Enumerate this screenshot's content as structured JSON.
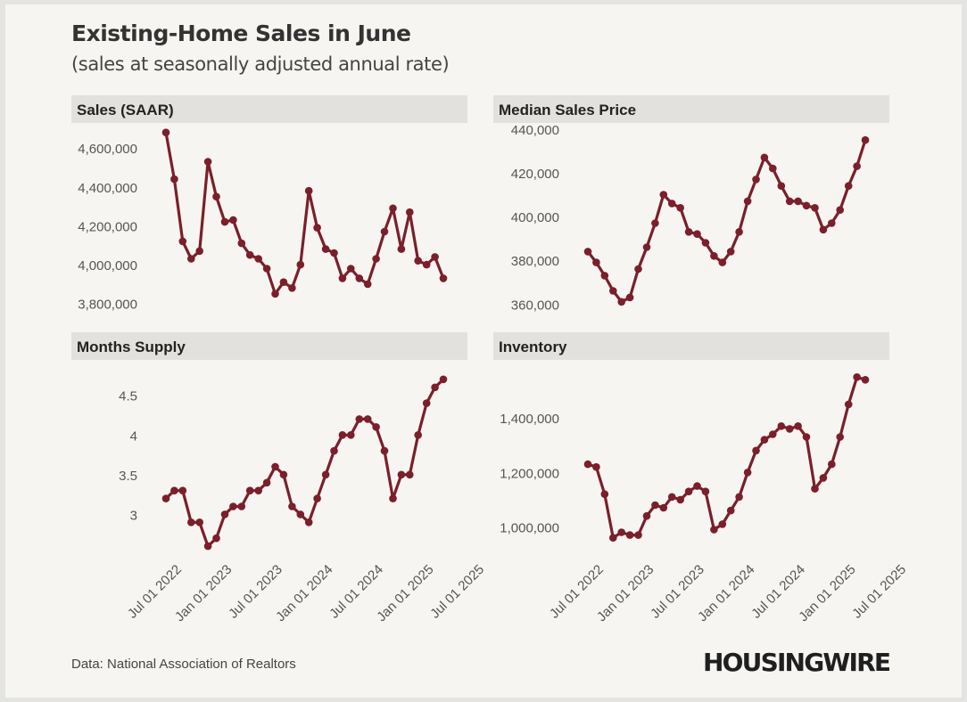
{
  "header": {
    "title": "Existing-Home Sales in June",
    "subtitle": "(sales at seasonally adjusted annual rate)"
  },
  "footer": {
    "source": "Data: National Association of Realtors",
    "logo": "HOUSINGWIRE"
  },
  "colors": {
    "line": "#7a1f2b",
    "panel_header": "#e3e1dd",
    "background": "#f7f5f1"
  },
  "x_tick_labels": [
    "Jul 01 2022",
    "Jan 01 2023",
    "Jul 01 2023",
    "Jan 01 2024",
    "Jul 01 2024",
    "Jan 01 2025",
    "Jul 01 2025"
  ],
  "chart_data": [
    {
      "type": "line",
      "title": "Sales (SAAR)",
      "x_start": "2022-06",
      "x_end": "2025-06",
      "y_ticks": [
        "3,800,000",
        "4,000,000",
        "4,200,000",
        "4,400,000",
        "4,600,000"
      ],
      "y_tick_values": [
        3800000,
        4000000,
        4200000,
        4400000,
        4600000
      ],
      "ylim": [
        3730000,
        4720000
      ],
      "values": [
        4680000,
        4440000,
        4120000,
        4030000,
        4070000,
        4530000,
        4350000,
        4220000,
        4230000,
        4110000,
        4050000,
        4030000,
        3980000,
        3850000,
        3910000,
        3880000,
        4000000,
        4380000,
        4190000,
        4080000,
        4060000,
        3930000,
        3980000,
        3930000,
        3900000,
        4030000,
        4170000,
        4290000,
        4080000,
        4270000,
        4020000,
        4000000,
        4040000,
        3930000
      ]
    },
    {
      "type": "line",
      "title": "Median Sales Price",
      "x_start": "2022-06",
      "x_end": "2025-06",
      "y_ticks": [
        "360,000",
        "380,000",
        "400,000",
        "420,000",
        "440,000"
      ],
      "y_tick_values": [
        360000,
        380000,
        400000,
        420000,
        440000
      ],
      "ylim": [
        354000,
        442000
      ],
      "values": [
        384000,
        379000,
        373000,
        366000,
        361000,
        363000,
        376000,
        386000,
        397000,
        410000,
        406000,
        404000,
        393000,
        392000,
        388000,
        382000,
        379000,
        384000,
        393000,
        407000,
        417000,
        427000,
        422000,
        414000,
        407000,
        407000,
        405000,
        404000,
        394000,
        397000,
        403000,
        414000,
        423000,
        435000
      ]
    },
    {
      "type": "line",
      "title": "Months Supply",
      "x_start": "2022-06",
      "x_end": "2025-06",
      "y_ticks": [
        "3",
        "3.5",
        "4",
        "4.5"
      ],
      "y_tick_values": [
        3,
        3.5,
        4,
        4.5
      ],
      "ylim": [
        2.5,
        4.9
      ],
      "values": [
        3.2,
        3.3,
        3.3,
        2.9,
        2.9,
        2.6,
        2.7,
        3.0,
        3.1,
        3.1,
        3.3,
        3.3,
        3.4,
        3.6,
        3.5,
        3.1,
        3.0,
        2.9,
        3.2,
        3.5,
        3.8,
        4.0,
        4.0,
        4.2,
        4.2,
        4.1,
        3.8,
        3.2,
        3.5,
        3.5,
        4.0,
        4.4,
        4.6,
        4.7
      ]
    },
    {
      "type": "line",
      "title": "Inventory",
      "x_start": "2022-06",
      "x_end": "2025-06",
      "y_ticks": [
        "1,000,000",
        "1,200,000",
        "1,400,000"
      ],
      "y_tick_values": [
        1000000,
        1200000,
        1400000
      ],
      "ylim": [
        900000,
        1600000
      ],
      "values": [
        1230000,
        1220000,
        1120000,
        960000,
        980000,
        970000,
        970000,
        1040000,
        1080000,
        1070000,
        1110000,
        1100000,
        1130000,
        1150000,
        1130000,
        990000,
        1010000,
        1060000,
        1110000,
        1200000,
        1280000,
        1320000,
        1340000,
        1370000,
        1360000,
        1370000,
        1330000,
        1140000,
        1180000,
        1230000,
        1330000,
        1450000,
        1550000,
        1540000
      ]
    }
  ]
}
